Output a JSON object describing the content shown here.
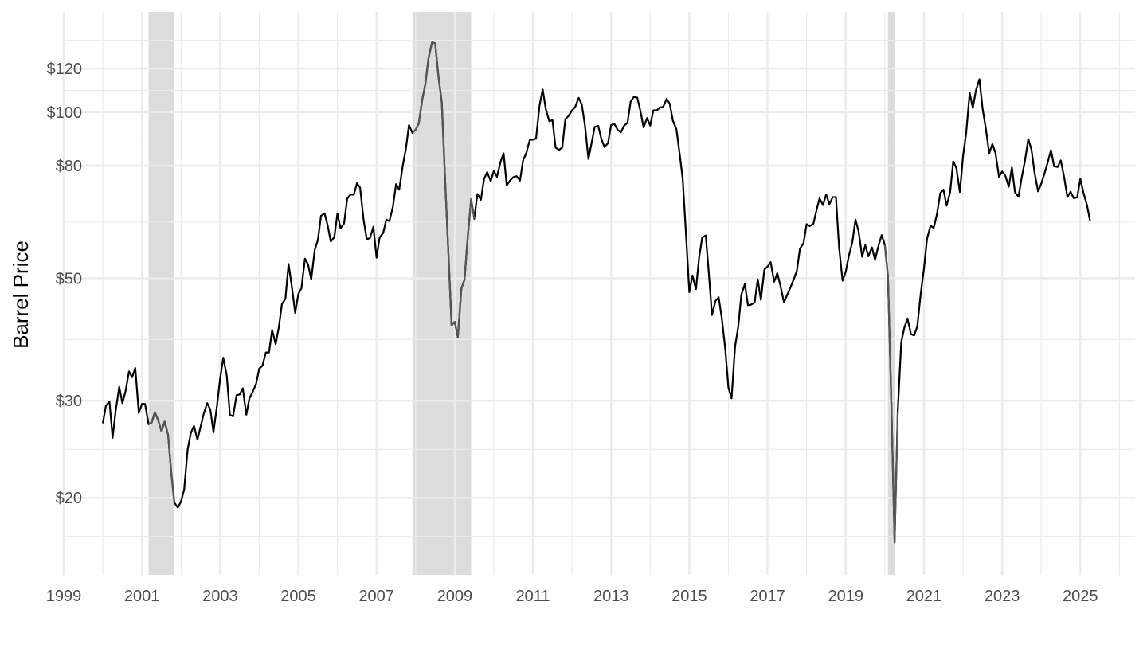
{
  "chart_data": {
    "type": "line",
    "title": "",
    "xlabel": "",
    "ylabel": "Barrel Price",
    "y_scale": "log",
    "x_range": [
      1999.0,
      2026.4
    ],
    "y_range": [
      14.5,
      152
    ],
    "grid": true,
    "legend": "none",
    "x_ticks": [
      1999,
      2001,
      2003,
      2005,
      2007,
      2009,
      2011,
      2013,
      2015,
      2017,
      2019,
      2021,
      2023,
      2025
    ],
    "x_tick_labels": [
      "1999",
      "2001",
      "2003",
      "2005",
      "2007",
      "2009",
      "2011",
      "2013",
      "2015",
      "2017",
      "2019",
      "2021",
      "2023",
      "2025"
    ],
    "y_ticks": [
      20,
      30,
      50,
      80,
      100,
      120
    ],
    "y_tick_labels": [
      "$20",
      "$30",
      "$50",
      "$80",
      "$100",
      "$120"
    ],
    "recessions": [
      {
        "start": 2001.17,
        "end": 2001.83
      },
      {
        "start": 2007.92,
        "end": 2009.42
      },
      {
        "start": 2020.08,
        "end": 2020.25
      }
    ],
    "colors": {
      "line": "#000000",
      "recession_line": "#555555",
      "recession_fill": "#dcdcdc",
      "grid": "#ebebeb"
    },
    "series": [
      {
        "x": [
          2000.0,
          2000.08,
          2000.17,
          2000.25,
          2000.33,
          2000.42,
          2000.5,
          2000.58,
          2000.67,
          2000.75,
          2000.83,
          2000.92,
          2001.0,
          2001.08,
          2001.17,
          2001.25,
          2001.33,
          2001.42,
          2001.5,
          2001.58,
          2001.67,
          2001.75,
          2001.83,
          2001.92,
          2002.0,
          2002.08,
          2002.17,
          2002.25,
          2002.33,
          2002.42,
          2002.5,
          2002.58,
          2002.67,
          2002.75,
          2002.83,
          2002.92,
          2003.0,
          2003.08,
          2003.17,
          2003.25,
          2003.33,
          2003.42,
          2003.5,
          2003.58,
          2003.67,
          2003.75,
          2003.83,
          2003.92,
          2004.0,
          2004.08,
          2004.17,
          2004.25,
          2004.33,
          2004.42,
          2004.5,
          2004.58,
          2004.67,
          2004.75,
          2004.83,
          2004.92,
          2005.0,
          2005.08,
          2005.17,
          2005.25,
          2005.33,
          2005.42,
          2005.5,
          2005.58,
          2005.67,
          2005.75,
          2005.83,
          2005.92,
          2006.0,
          2006.08,
          2006.17,
          2006.25,
          2006.33,
          2006.42,
          2006.5,
          2006.58,
          2006.67,
          2006.75,
          2006.83,
          2006.92,
          2007.0,
          2007.08,
          2007.17,
          2007.25,
          2007.33,
          2007.42,
          2007.5,
          2007.58,
          2007.67,
          2007.75,
          2007.83,
          2007.92,
          2008.0,
          2008.08,
          2008.17,
          2008.25,
          2008.33,
          2008.42,
          2008.5,
          2008.58,
          2008.67,
          2008.75,
          2008.83,
          2008.92,
          2009.0,
          2009.08,
          2009.17,
          2009.25,
          2009.33,
          2009.42,
          2009.5,
          2009.58,
          2009.67,
          2009.75,
          2009.83,
          2009.92,
          2010.0,
          2010.08,
          2010.17,
          2010.25,
          2010.33,
          2010.42,
          2010.5,
          2010.58,
          2010.67,
          2010.75,
          2010.83,
          2010.92,
          2011.0,
          2011.08,
          2011.17,
          2011.25,
          2011.33,
          2011.42,
          2011.5,
          2011.58,
          2011.67,
          2011.75,
          2011.83,
          2011.92,
          2012.0,
          2012.08,
          2012.17,
          2012.25,
          2012.33,
          2012.42,
          2012.5,
          2012.58,
          2012.67,
          2012.75,
          2012.83,
          2012.92,
          2013.0,
          2013.08,
          2013.17,
          2013.25,
          2013.33,
          2013.42,
          2013.5,
          2013.58,
          2013.67,
          2013.75,
          2013.83,
          2013.92,
          2014.0,
          2014.08,
          2014.17,
          2014.25,
          2014.33,
          2014.42,
          2014.5,
          2014.58,
          2014.67,
          2014.75,
          2014.83,
          2014.92,
          2015.0,
          2015.08,
          2015.17,
          2015.25,
          2015.33,
          2015.42,
          2015.5,
          2015.58,
          2015.67,
          2015.75,
          2015.83,
          2015.92,
          2016.0,
          2016.08,
          2016.17,
          2016.25,
          2016.33,
          2016.42,
          2016.5,
          2016.58,
          2016.67,
          2016.75,
          2016.83,
          2016.92,
          2017.0,
          2017.08,
          2017.17,
          2017.25,
          2017.33,
          2017.42,
          2017.5,
          2017.58,
          2017.67,
          2017.75,
          2017.83,
          2017.92,
          2018.0,
          2018.08,
          2018.17,
          2018.25,
          2018.33,
          2018.42,
          2018.5,
          2018.58,
          2018.67,
          2018.75,
          2018.83,
          2018.92,
          2019.0,
          2019.08,
          2019.17,
          2019.25,
          2019.33,
          2019.42,
          2019.5,
          2019.58,
          2019.67,
          2019.75,
          2019.83,
          2019.92,
          2020.0,
          2020.08,
          2020.17,
          2020.25,
          2020.33,
          2020.42,
          2020.5,
          2020.58,
          2020.67,
          2020.75,
          2020.83,
          2020.92,
          2021.0,
          2021.08,
          2021.17,
          2021.25,
          2021.33,
          2021.42,
          2021.5,
          2021.58,
          2021.67,
          2021.75,
          2021.83,
          2021.92,
          2022.0,
          2022.08,
          2022.17,
          2022.25,
          2022.33,
          2022.42,
          2022.5,
          2022.58,
          2022.67,
          2022.75,
          2022.83,
          2022.92,
          2023.0,
          2023.08,
          2023.17,
          2023.25,
          2023.33,
          2023.42,
          2023.5,
          2023.58,
          2023.67,
          2023.75,
          2023.83,
          2023.92,
          2024.0,
          2024.08,
          2024.17,
          2024.25,
          2024.33,
          2024.42,
          2024.5,
          2024.58,
          2024.67,
          2024.75,
          2024.83,
          2024.92,
          2025.0,
          2025.08,
          2025.17,
          2025.25
        ],
        "y": [
          27.3,
          29.4,
          29.9,
          25.7,
          28.8,
          31.8,
          29.7,
          31.2,
          33.9,
          33.1,
          34.4,
          28.5,
          29.6,
          29.6,
          27.2,
          27.4,
          28.6,
          27.6,
          26.4,
          27.5,
          26.0,
          22.2,
          19.6,
          19.2,
          19.7,
          20.7,
          24.5,
          26.2,
          27.0,
          25.5,
          26.9,
          28.4,
          29.7,
          28.9,
          26.3,
          29.4,
          32.9,
          35.9,
          33.3,
          28.3,
          28.1,
          30.7,
          30.8,
          31.6,
          28.3,
          30.3,
          31.1,
          32.2,
          34.3,
          34.7,
          36.7,
          36.7,
          40.3,
          38.0,
          40.7,
          44.9,
          45.9,
          53.1,
          48.5,
          43.3,
          46.8,
          48.0,
          54.3,
          53.0,
          49.8,
          56.3,
          58.7,
          64.9,
          65.6,
          62.4,
          58.3,
          59.4,
          65.5,
          61.6,
          62.9,
          69.7,
          70.9,
          70.9,
          74.4,
          73.0,
          63.8,
          58.9,
          59.1,
          62.0,
          54.5,
          59.3,
          60.4,
          63.9,
          63.5,
          67.5,
          74.1,
          72.4,
          79.9,
          85.8,
          94.8,
          91.7,
          93.0,
          95.4,
          105.5,
          112.6,
          125.4,
          133.9,
          133.4,
          116.7,
          104.1,
          76.6,
          57.3,
          41.1,
          41.7,
          39.1,
          47.9,
          49.7,
          59.0,
          69.6,
          64.1,
          71.1,
          69.4,
          75.7,
          77.9,
          75.0,
          78.3,
          76.4,
          81.2,
          84.3,
          73.7,
          75.3,
          76.3,
          76.6,
          75.2,
          81.9,
          84.3,
          89.1,
          89.2,
          89.6,
          102.9,
          110.0,
          101.3,
          96.3,
          96.8,
          86.3,
          85.5,
          86.3,
          97.2,
          98.6,
          100.8,
          102.2,
          106.2,
          103.3,
          94.7,
          82.3,
          87.9,
          94.1,
          94.5,
          89.5,
          86.5,
          87.9,
          94.8,
          95.3,
          92.9,
          92.0,
          94.5,
          95.8,
          104.6,
          106.6,
          106.3,
          100.5,
          93.9,
          97.6,
          94.6,
          100.8,
          100.8,
          102.1,
          102.2,
          105.8,
          103.6,
          96.5,
          93.2,
          84.4,
          75.8,
          59.3,
          47.2,
          50.6,
          47.8,
          54.5,
          59.3,
          59.8,
          51.0,
          42.9,
          45.5,
          46.2,
          42.4,
          37.2,
          31.7,
          30.3,
          37.6,
          40.8,
          46.7,
          48.8,
          44.7,
          44.8,
          45.2,
          49.8,
          45.7,
          51.9,
          52.5,
          53.5,
          49.3,
          51.1,
          48.5,
          45.2,
          46.6,
          48.0,
          49.8,
          51.6,
          56.6,
          57.9,
          62.7,
          62.2,
          62.7,
          66.3,
          69.8,
          67.9,
          71.0,
          68.1,
          70.2,
          70.2,
          56.9,
          49.5,
          51.4,
          54.9,
          58.2,
          63.9,
          60.8,
          54.7,
          57.4,
          54.8,
          56.9,
          54.0,
          57.0,
          59.9,
          57.5,
          50.5,
          29.2,
          16.6,
          28.6,
          38.3,
          40.7,
          42.3,
          39.6,
          39.4,
          40.9,
          47.0,
          52.0,
          59.0,
          62.3,
          61.7,
          65.2,
          71.4,
          72.4,
          67.7,
          71.6,
          81.5,
          79.2,
          71.7,
          83.2,
          91.6,
          108.5,
          101.8,
          109.6,
          114.8,
          101.6,
          93.7,
          84.3,
          87.6,
          84.4,
          76.4,
          78.1,
          76.8,
          73.3,
          79.4,
          71.6,
          70.3,
          76.1,
          81.4,
          89.4,
          85.6,
          77.7,
          71.9,
          74.2,
          77.3,
          81.3,
          85.4,
          79.8,
          79.6,
          81.8,
          76.7,
          70.2,
          71.8,
          69.9,
          70.1,
          75.7,
          71.5,
          67.9,
          63.5
        ]
      }
    ]
  }
}
